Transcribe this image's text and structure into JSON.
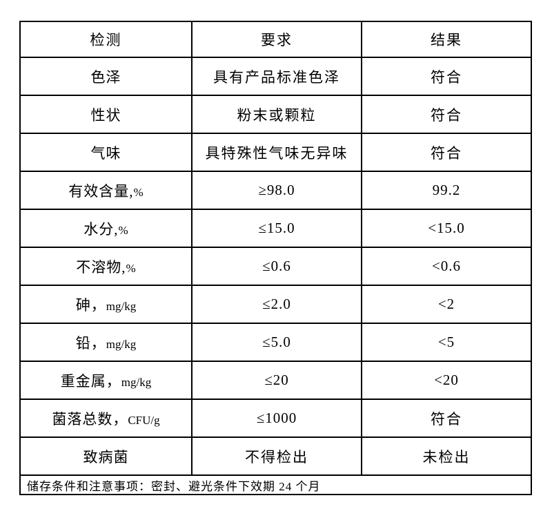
{
  "table": {
    "headers": {
      "test": "检测",
      "requirement": "要求",
      "result": "结果"
    },
    "rows": [
      {
        "name": "色泽",
        "unit": "",
        "requirement": "具有产品标准色泽",
        "result": "符合"
      },
      {
        "name": "性状",
        "unit": "",
        "requirement": "粉末或颗粒",
        "result": "符合"
      },
      {
        "name": "气味",
        "unit": "",
        "requirement": "具特殊性气味无异味",
        "result": "符合"
      },
      {
        "name": "有效含量,",
        "unit": "%",
        "requirement": "≥98.0",
        "result": "99.2"
      },
      {
        "name": "水分,",
        "unit": "%",
        "requirement": "≤15.0",
        "result": "<15.0"
      },
      {
        "name": "不溶物,",
        "unit": "%",
        "requirement": "≤0.6",
        "result": "<0.6"
      },
      {
        "name": "砷，",
        "unit": "mg/kg",
        "requirement": "≤2.0",
        "result": "<2"
      },
      {
        "name": "铅，",
        "unit": "mg/kg",
        "requirement": "≤5.0",
        "result": "<5"
      },
      {
        "name": "重金属，",
        "unit": "mg/kg",
        "requirement": "≤20",
        "result": "<20"
      },
      {
        "name": "菌落总数，",
        "unit": "CFU/g",
        "requirement": "≤1000",
        "result": "符合"
      },
      {
        "name": "致病菌",
        "unit": "",
        "requirement": "不得检出",
        "result": "未检出"
      }
    ],
    "footer": "储存条件和注意事项：密封、避光条件下效期 24 个月"
  }
}
